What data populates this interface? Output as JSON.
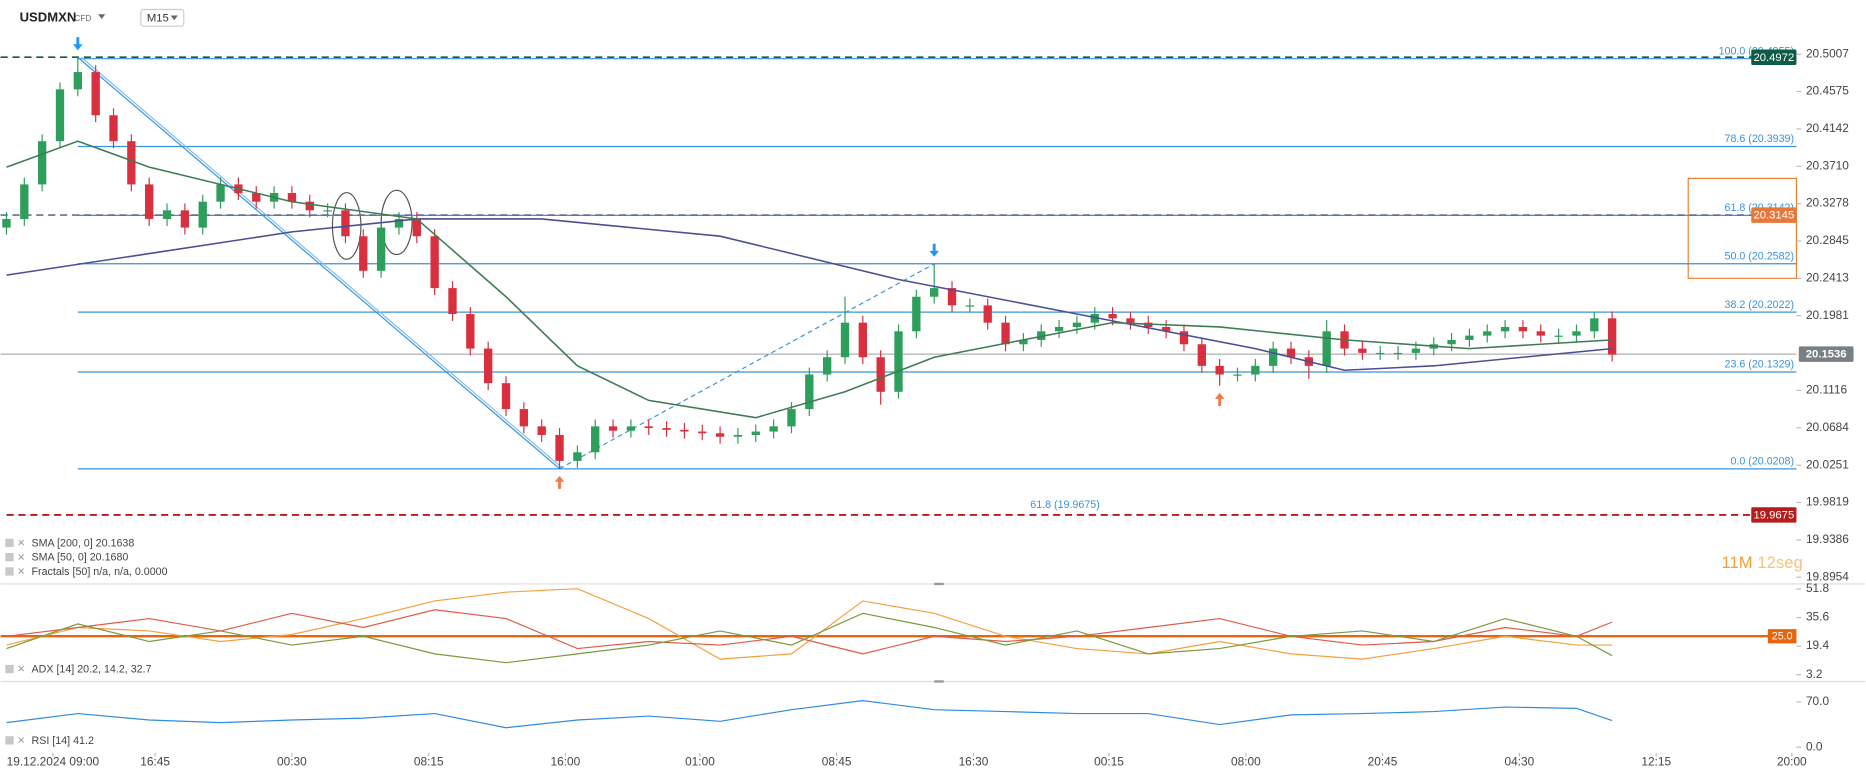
{
  "chart_data": [
    {
      "type": "candlestick",
      "title": "USDMXN",
      "subtitle": "CFD",
      "timeframe": "M15",
      "xlim": [
        -0.33,
        100.33
      ],
      "xticks": [
        {
          "value": 2.6,
          "label": "19.12.2024 09:00"
        },
        {
          "value": 8.33,
          "label": "16:45"
        },
        {
          "value": 16,
          "label": "00:30"
        },
        {
          "value": 23.67,
          "label": "08:15"
        },
        {
          "value": 31.33,
          "label": "16:00"
        },
        {
          "value": 38.87,
          "label": "01:00"
        },
        {
          "value": 46.53,
          "label": "08:45"
        },
        {
          "value": 54.2,
          "label": "16:30"
        },
        {
          "value": 61.8,
          "label": "00:15"
        },
        {
          "value": 69.47,
          "label": "08:00"
        },
        {
          "value": 77.13,
          "label": "20:45"
        },
        {
          "value": 84.8,
          "label": "04:30"
        },
        {
          "value": 92.47,
          "label": "12:15"
        },
        {
          "value": 100.07,
          "label": "20:00"
        }
      ],
      "ylim": [
        19.889,
        20.529
      ],
      "yticks": [
        20.5007,
        20.4575,
        20.4142,
        {
          "value": 20.371,
          "label": "20.3710"
        },
        20.3278,
        20.2845,
        20.2413,
        20.1981,
        20.1116,
        20.0684,
        20.0251,
        19.9819,
        19.9386,
        19.8954
      ],
      "up_color": "#2e9e5b",
      "down_color": "#d8303f",
      "open": [
        20.3,
        20.31,
        20.35,
        20.4,
        20.46,
        20.48,
        20.43,
        20.4,
        20.35,
        20.31,
        20.32,
        20.3,
        20.33,
        20.35,
        20.34,
        20.33,
        20.34,
        20.33,
        20.32,
        20.32,
        20.29,
        20.25,
        20.3,
        20.31,
        20.29,
        20.23,
        20.2,
        20.16,
        20.12,
        20.09,
        20.07,
        20.06,
        20.03,
        20.04,
        20.07,
        20.065,
        20.07,
        20.068,
        20.066,
        20.064,
        20.062,
        20.058,
        20.06,
        20.064,
        20.07,
        20.09,
        20.13,
        20.15,
        20.19,
        20.15,
        20.11,
        20.18,
        20.22,
        20.23,
        20.21,
        20.21,
        20.19,
        20.165,
        20.17,
        20.18,
        20.185,
        20.19,
        20.2,
        20.195,
        20.19,
        20.185,
        20.18,
        20.165,
        20.14,
        20.13,
        20.13,
        20.14,
        20.16,
        20.15,
        20.14,
        20.18,
        20.16,
        20.155,
        20.155,
        20.155,
        20.16,
        20.165,
        20.17,
        20.175,
        20.18,
        20.185,
        20.18,
        20.175,
        20.175,
        20.18,
        20.195
      ],
      "high": [
        20.318,
        20.358,
        20.408,
        20.468,
        20.497,
        20.488,
        20.438,
        20.408,
        20.358,
        20.328,
        20.328,
        20.338,
        20.358,
        20.358,
        20.348,
        20.348,
        20.348,
        20.338,
        20.328,
        20.328,
        20.298,
        20.308,
        20.318,
        20.318,
        20.298,
        20.238,
        20.208,
        20.168,
        20.128,
        20.098,
        20.078,
        20.068,
        20.048,
        20.078,
        20.078,
        20.078,
        20.078,
        20.076,
        20.074,
        20.072,
        20.07,
        20.068,
        20.072,
        20.078,
        20.098,
        20.138,
        20.158,
        20.22,
        20.198,
        20.158,
        20.188,
        20.228,
        20.258,
        20.238,
        20.218,
        20.218,
        20.198,
        20.178,
        20.188,
        20.193,
        20.198,
        20.208,
        20.208,
        20.203,
        20.198,
        20.193,
        20.188,
        20.173,
        20.148,
        20.138,
        20.148,
        20.168,
        20.168,
        20.158,
        20.193,
        20.188,
        20.168,
        20.163,
        20.163,
        20.168,
        20.173,
        20.178,
        20.183,
        20.188,
        20.193,
        20.193,
        20.188,
        20.183,
        20.188,
        20.203,
        20.203
      ],
      "low": [
        20.292,
        20.302,
        20.342,
        20.392,
        20.452,
        20.422,
        20.392,
        20.342,
        20.302,
        20.302,
        20.292,
        20.292,
        20.322,
        20.332,
        20.322,
        20.322,
        20.322,
        20.312,
        20.312,
        20.282,
        20.242,
        20.242,
        20.292,
        20.282,
        20.222,
        20.192,
        20.152,
        20.112,
        20.082,
        20.062,
        20.052,
        20.021,
        20.022,
        20.032,
        20.057,
        20.057,
        20.06,
        20.058,
        20.056,
        20.054,
        20.05,
        20.05,
        20.052,
        20.056,
        20.062,
        20.082,
        20.122,
        20.142,
        20.142,
        20.095,
        20.102,
        20.172,
        20.212,
        20.202,
        20.202,
        20.182,
        20.157,
        20.157,
        20.162,
        20.172,
        20.177,
        20.182,
        20.187,
        20.182,
        20.177,
        20.172,
        20.157,
        20.132,
        20.117,
        20.122,
        20.122,
        20.132,
        20.142,
        20.125,
        20.132,
        20.152,
        20.147,
        20.147,
        20.147,
        20.147,
        20.152,
        20.157,
        20.162,
        20.167,
        20.172,
        20.172,
        20.167,
        20.167,
        20.167,
        20.172,
        20.145
      ],
      "close": [
        20.31,
        20.35,
        20.4,
        20.46,
        20.48,
        20.43,
        20.4,
        20.35,
        20.31,
        20.32,
        20.3,
        20.33,
        20.35,
        20.34,
        20.33,
        20.34,
        20.33,
        20.32,
        20.32,
        20.29,
        20.25,
        20.3,
        20.31,
        20.29,
        20.23,
        20.2,
        20.16,
        20.12,
        20.09,
        20.07,
        20.06,
        20.03,
        20.04,
        20.07,
        20.065,
        20.07,
        20.068,
        20.066,
        20.064,
        20.062,
        20.058,
        20.06,
        20.064,
        20.07,
        20.09,
        20.13,
        20.15,
        20.19,
        20.15,
        20.11,
        20.18,
        20.22,
        20.23,
        20.21,
        20.21,
        20.19,
        20.165,
        20.17,
        20.18,
        20.185,
        20.19,
        20.2,
        20.195,
        20.19,
        20.185,
        20.18,
        20.165,
        20.14,
        20.13,
        20.13,
        20.14,
        20.16,
        20.15,
        20.14,
        20.18,
        20.16,
        20.155,
        20.155,
        20.155,
        20.16,
        20.165,
        20.17,
        20.175,
        20.18,
        20.185,
        20.18,
        20.175,
        20.175,
        20.18,
        20.195,
        20.153
      ],
      "series": [
        {
          "name": "SMA [200, 0] 20.1638",
          "color": "#4b4e96",
          "x": [
            0,
            8,
            16,
            23,
            30,
            40,
            50,
            60,
            70,
            75,
            80,
            90
          ],
          "values": [
            20.245,
            20.27,
            20.295,
            20.31,
            20.31,
            20.29,
            20.24,
            20.2,
            20.16,
            20.135,
            20.14,
            20.16
          ]
        },
        {
          "name": "SMA [50, 0] 20.1680",
          "color": "#3e7b52",
          "x": [
            0,
            4,
            8,
            16,
            23,
            28,
            32,
            36,
            42,
            47,
            52,
            57,
            62,
            68,
            75,
            82,
            90
          ],
          "values": [
            20.37,
            20.4,
            20.37,
            20.33,
            20.31,
            20.22,
            20.14,
            20.1,
            20.08,
            20.11,
            20.15,
            20.17,
            20.19,
            20.185,
            20.17,
            20.16,
            20.17
          ]
        }
      ],
      "fractals": {
        "name": "Fractals [50] n/a, n/a, 0.0000",
        "high_color": "#2196f3",
        "low_color": "#f07a4a",
        "highs": [
          {
            "x": 4,
            "value": 20.497
          },
          {
            "x": 52,
            "value": 20.258
          }
        ],
        "lows": [
          {
            "x": 31,
            "value": 20.021
          },
          {
            "x": 68,
            "value": 20.117
          }
        ]
      },
      "fib_color": "#3a93dc",
      "fib_levels": [
        {
          "label": "100.0 (20.4955)",
          "value": 20.4955
        },
        {
          "label": "78.6 (20.3939)",
          "value": 20.3939
        },
        {
          "label": "61.8 (20.3142)",
          "value": 20.3142
        },
        {
          "label": "50.0 (20.2582)",
          "value": 20.2582
        },
        {
          "label": "38.2 (20.2022)",
          "value": 20.2022
        },
        {
          "label": "23.6 (20.1329)",
          "value": 20.1329
        },
        {
          "label": "0.0 (20.0208)",
          "value": 20.0208
        }
      ],
      "extension": {
        "label": "61.8 (19.9675)",
        "value": 19.9675,
        "color": "#b71c1c"
      },
      "price_tags": [
        {
          "value": 20.4972,
          "color": "#0d5c46",
          "line": "dashed",
          "side": "plot"
        },
        {
          "value": 20.3145,
          "color": "#e8773a",
          "line": "dashed",
          "side": "plot"
        },
        {
          "value": 20.1536,
          "color": "#7a7f85",
          "line": "solid",
          "side": "axis"
        },
        {
          "value": 19.9675,
          "color": "#b71c1c",
          "line": "none",
          "side": "plot"
        }
      ],
      "countdown": [
        "11M",
        "12seg"
      ]
    },
    {
      "type": "line",
      "legend": "ADX [14] 20.2, 14.2, 32.7",
      "xlim": [
        -0.33,
        100.33
      ],
      "ylim": [
        0,
        54
      ],
      "yticks": [
        51.8,
        35.6,
        19.4,
        3.2
      ],
      "threshold": {
        "value": 25,
        "label": "25.0",
        "color": "#e8650f"
      },
      "x": [
        0,
        4,
        8,
        12,
        16,
        20,
        24,
        28,
        32,
        36,
        40,
        44,
        48,
        52,
        56,
        60,
        64,
        68,
        72,
        76,
        80,
        84,
        88,
        90
      ],
      "series": [
        {
          "color": "#f4a040",
          "values": [
            20,
            30,
            28,
            22,
            26,
            35,
            45,
            50,
            52,
            35,
            12,
            15,
            45,
            38,
            25,
            18,
            15,
            22,
            15,
            12,
            18,
            25,
            20,
            20
          ]
        },
        {
          "color": "#e05a47",
          "values": [
            25,
            30,
            35,
            28,
            38,
            30,
            40,
            35,
            18,
            22,
            20,
            25,
            15,
            25,
            22,
            25,
            30,
            35,
            25,
            20,
            22,
            30,
            25,
            33
          ]
        },
        {
          "color": "#7a9a3a",
          "values": [
            18,
            32,
            22,
            28,
            20,
            25,
            15,
            10,
            15,
            20,
            28,
            20,
            38,
            30,
            20,
            28,
            15,
            18,
            25,
            28,
            22,
            35,
            25,
            14
          ]
        }
      ]
    },
    {
      "type": "line",
      "legend": "RSI [14] 41.2",
      "xlim": [
        -0.33,
        100.33
      ],
      "ylim": [
        -7,
        98
      ],
      "yticks": [
        {
          "value": 70,
          "label": "70.0"
        },
        {
          "value": 0,
          "label": "0.0"
        }
      ],
      "x": [
        0,
        4,
        8,
        12,
        16,
        20,
        24,
        28,
        32,
        36,
        40,
        44,
        48,
        52,
        56,
        60,
        64,
        68,
        72,
        76,
        80,
        84,
        88,
        90
      ],
      "series": [
        {
          "color": "#2f8be0",
          "values": [
            38,
            52,
            42,
            38,
            42,
            45,
            52,
            30,
            42,
            48,
            40,
            58,
            72,
            58,
            55,
            52,
            52,
            35,
            50,
            52,
            55,
            62,
            60,
            41
          ]
        }
      ]
    }
  ]
}
